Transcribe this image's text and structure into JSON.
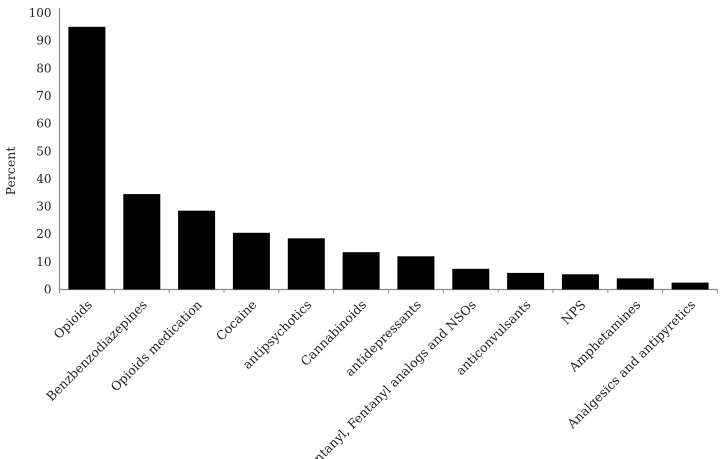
{
  "figure": {
    "background": "#ffffff"
  },
  "chart_data": {
    "type": "bar",
    "ylabel": "Percent",
    "ylim": [
      0,
      100
    ],
    "ytick_step": 10,
    "grid": false,
    "legend": "none",
    "bar_color": "#000000",
    "axis_color": "#8c8c8c",
    "text_color": "#1f1f1f",
    "categories": [
      "Opioids",
      "Benzbenzodiazepines",
      "Opioids medication",
      "Cocaine",
      "antipsychotics",
      "Cannabinoids",
      "antidepressants",
      "Fentanyl, Fentanyl analogs and NSOs",
      "anticonvulsants",
      "NPS",
      "Amphetamines",
      "Analgesics and antipyretics"
    ],
    "values": [
      95,
      34.5,
      28.5,
      20.5,
      18.5,
      13.5,
      12,
      7.5,
      6,
      5.5,
      4,
      2.5
    ],
    "x_label_rotation_deg": 45
  }
}
